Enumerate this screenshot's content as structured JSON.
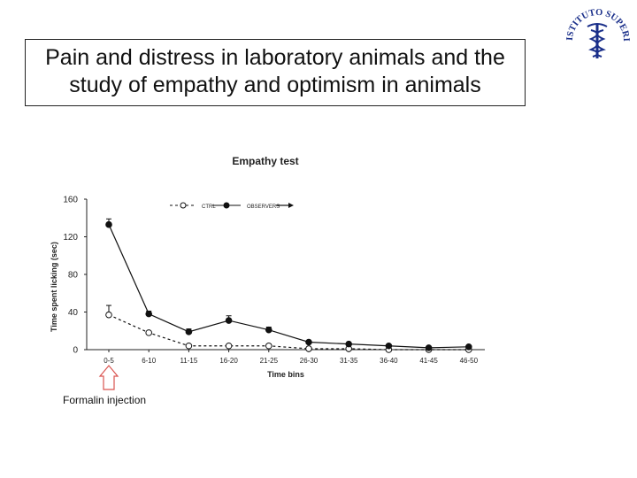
{
  "slide": {
    "title": "Pain and distress in laboratory animals and the study of empathy and optimism in animals",
    "annotation": "Formalin injection"
  },
  "logo": {
    "text": "ISTITUTO SUPERIORE DI SANITÀ",
    "color": "#1a2f8a"
  },
  "chart_data": {
    "type": "line",
    "title": "Empathy test",
    "xlabel": "Time bins",
    "ylabel": "Time spent licking (sec)",
    "ylim": [
      0,
      160
    ],
    "yticks": [
      0,
      40,
      80,
      120,
      160
    ],
    "categories": [
      "0-5",
      "6-10",
      "11-15",
      "16-20",
      "21-25",
      "26-30",
      "31-35",
      "36-40",
      "41-45",
      "46-50"
    ],
    "legend_position": "top-right",
    "series": [
      {
        "name": "CTRL",
        "style": "dashed",
        "marker": "open-circle",
        "values": [
          37,
          18,
          4,
          4,
          4,
          1,
          1,
          0,
          0,
          0
        ],
        "errors": [
          10,
          0,
          0,
          0,
          2,
          0,
          0,
          0,
          0,
          0
        ]
      },
      {
        "name": "OBSERVERS",
        "style": "solid",
        "marker": "filled-circle",
        "values": [
          133,
          38,
          19,
          31,
          21,
          8,
          6,
          4,
          2,
          3
        ],
        "errors": [
          6,
          3,
          3,
          5,
          3,
          0,
          0,
          0,
          0,
          0
        ]
      }
    ]
  }
}
